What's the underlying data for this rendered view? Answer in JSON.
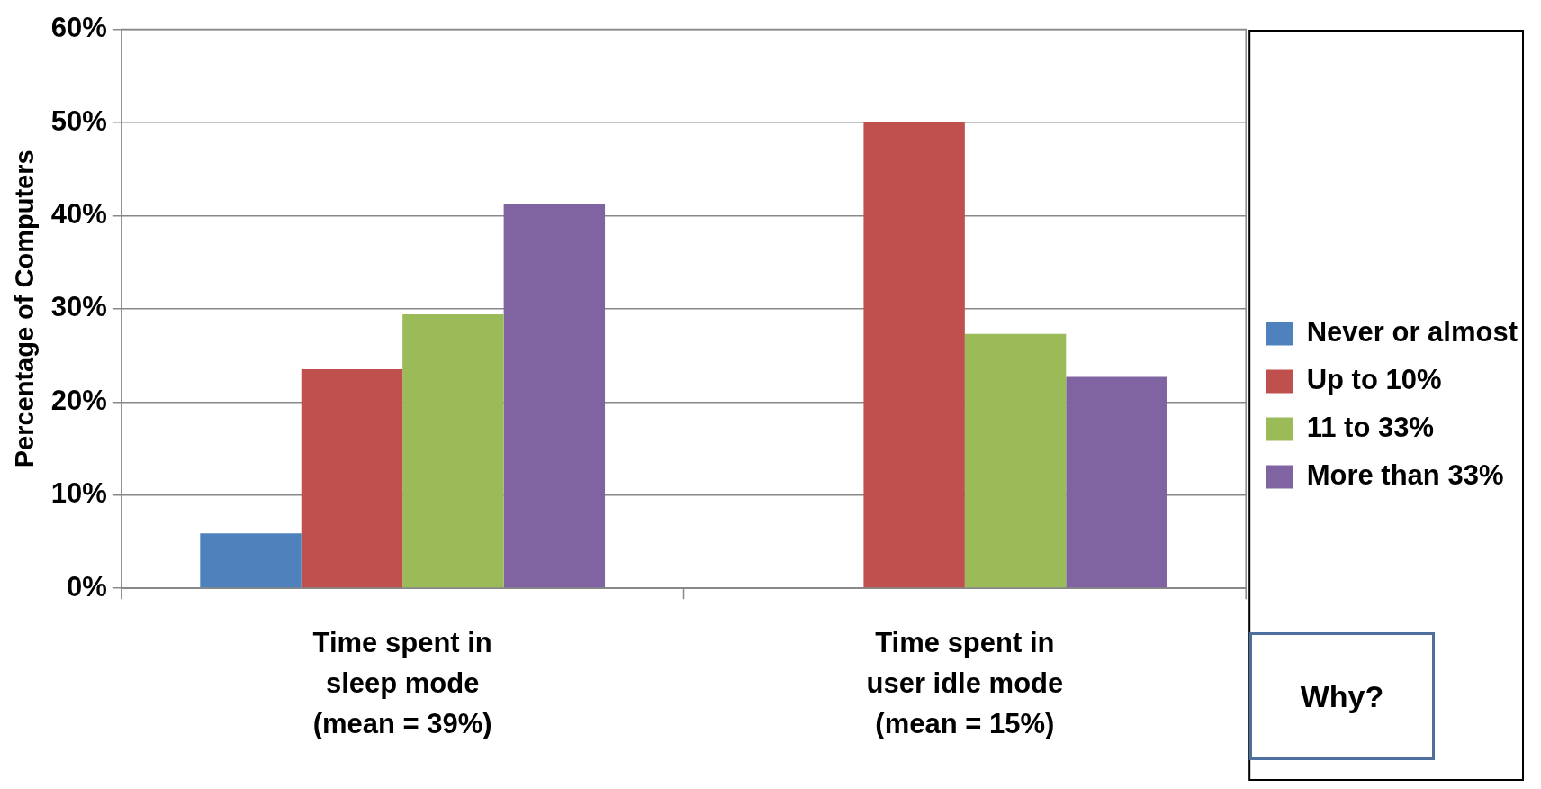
{
  "chart_data": {
    "type": "bar",
    "ylabel": "Percentage of Computers",
    "categories": [
      "Time spent in\nsleep mode\n(mean = 39%)",
      "Time spent in\nuser idle mode\n(mean = 15%)"
    ],
    "series": [
      {
        "name": "Never or almost",
        "color": "#4f81bd",
        "values": [
          5.9,
          0
        ]
      },
      {
        "name": "Up to 10%",
        "color": "#c0504d",
        "values": [
          23.5,
          50
        ]
      },
      {
        "name": "11 to 33%",
        "color": "#9bbb59",
        "values": [
          29.4,
          27.3
        ]
      },
      {
        "name": "More than 33%",
        "color": "#8064a2",
        "values": [
          41.2,
          22.7
        ]
      }
    ],
    "ylim": [
      0,
      60
    ],
    "yticks": [
      {
        "value": 0,
        "label": "0%"
      },
      {
        "value": 10,
        "label": "10%"
      },
      {
        "value": 20,
        "label": "20%"
      },
      {
        "value": 30,
        "label": "30%"
      },
      {
        "value": 40,
        "label": "40%"
      },
      {
        "value": 50,
        "label": "50%"
      },
      {
        "value": 60,
        "label": "60%"
      }
    ],
    "grid": "y",
    "legend": "right",
    "annotations": [
      "Why?"
    ]
  }
}
